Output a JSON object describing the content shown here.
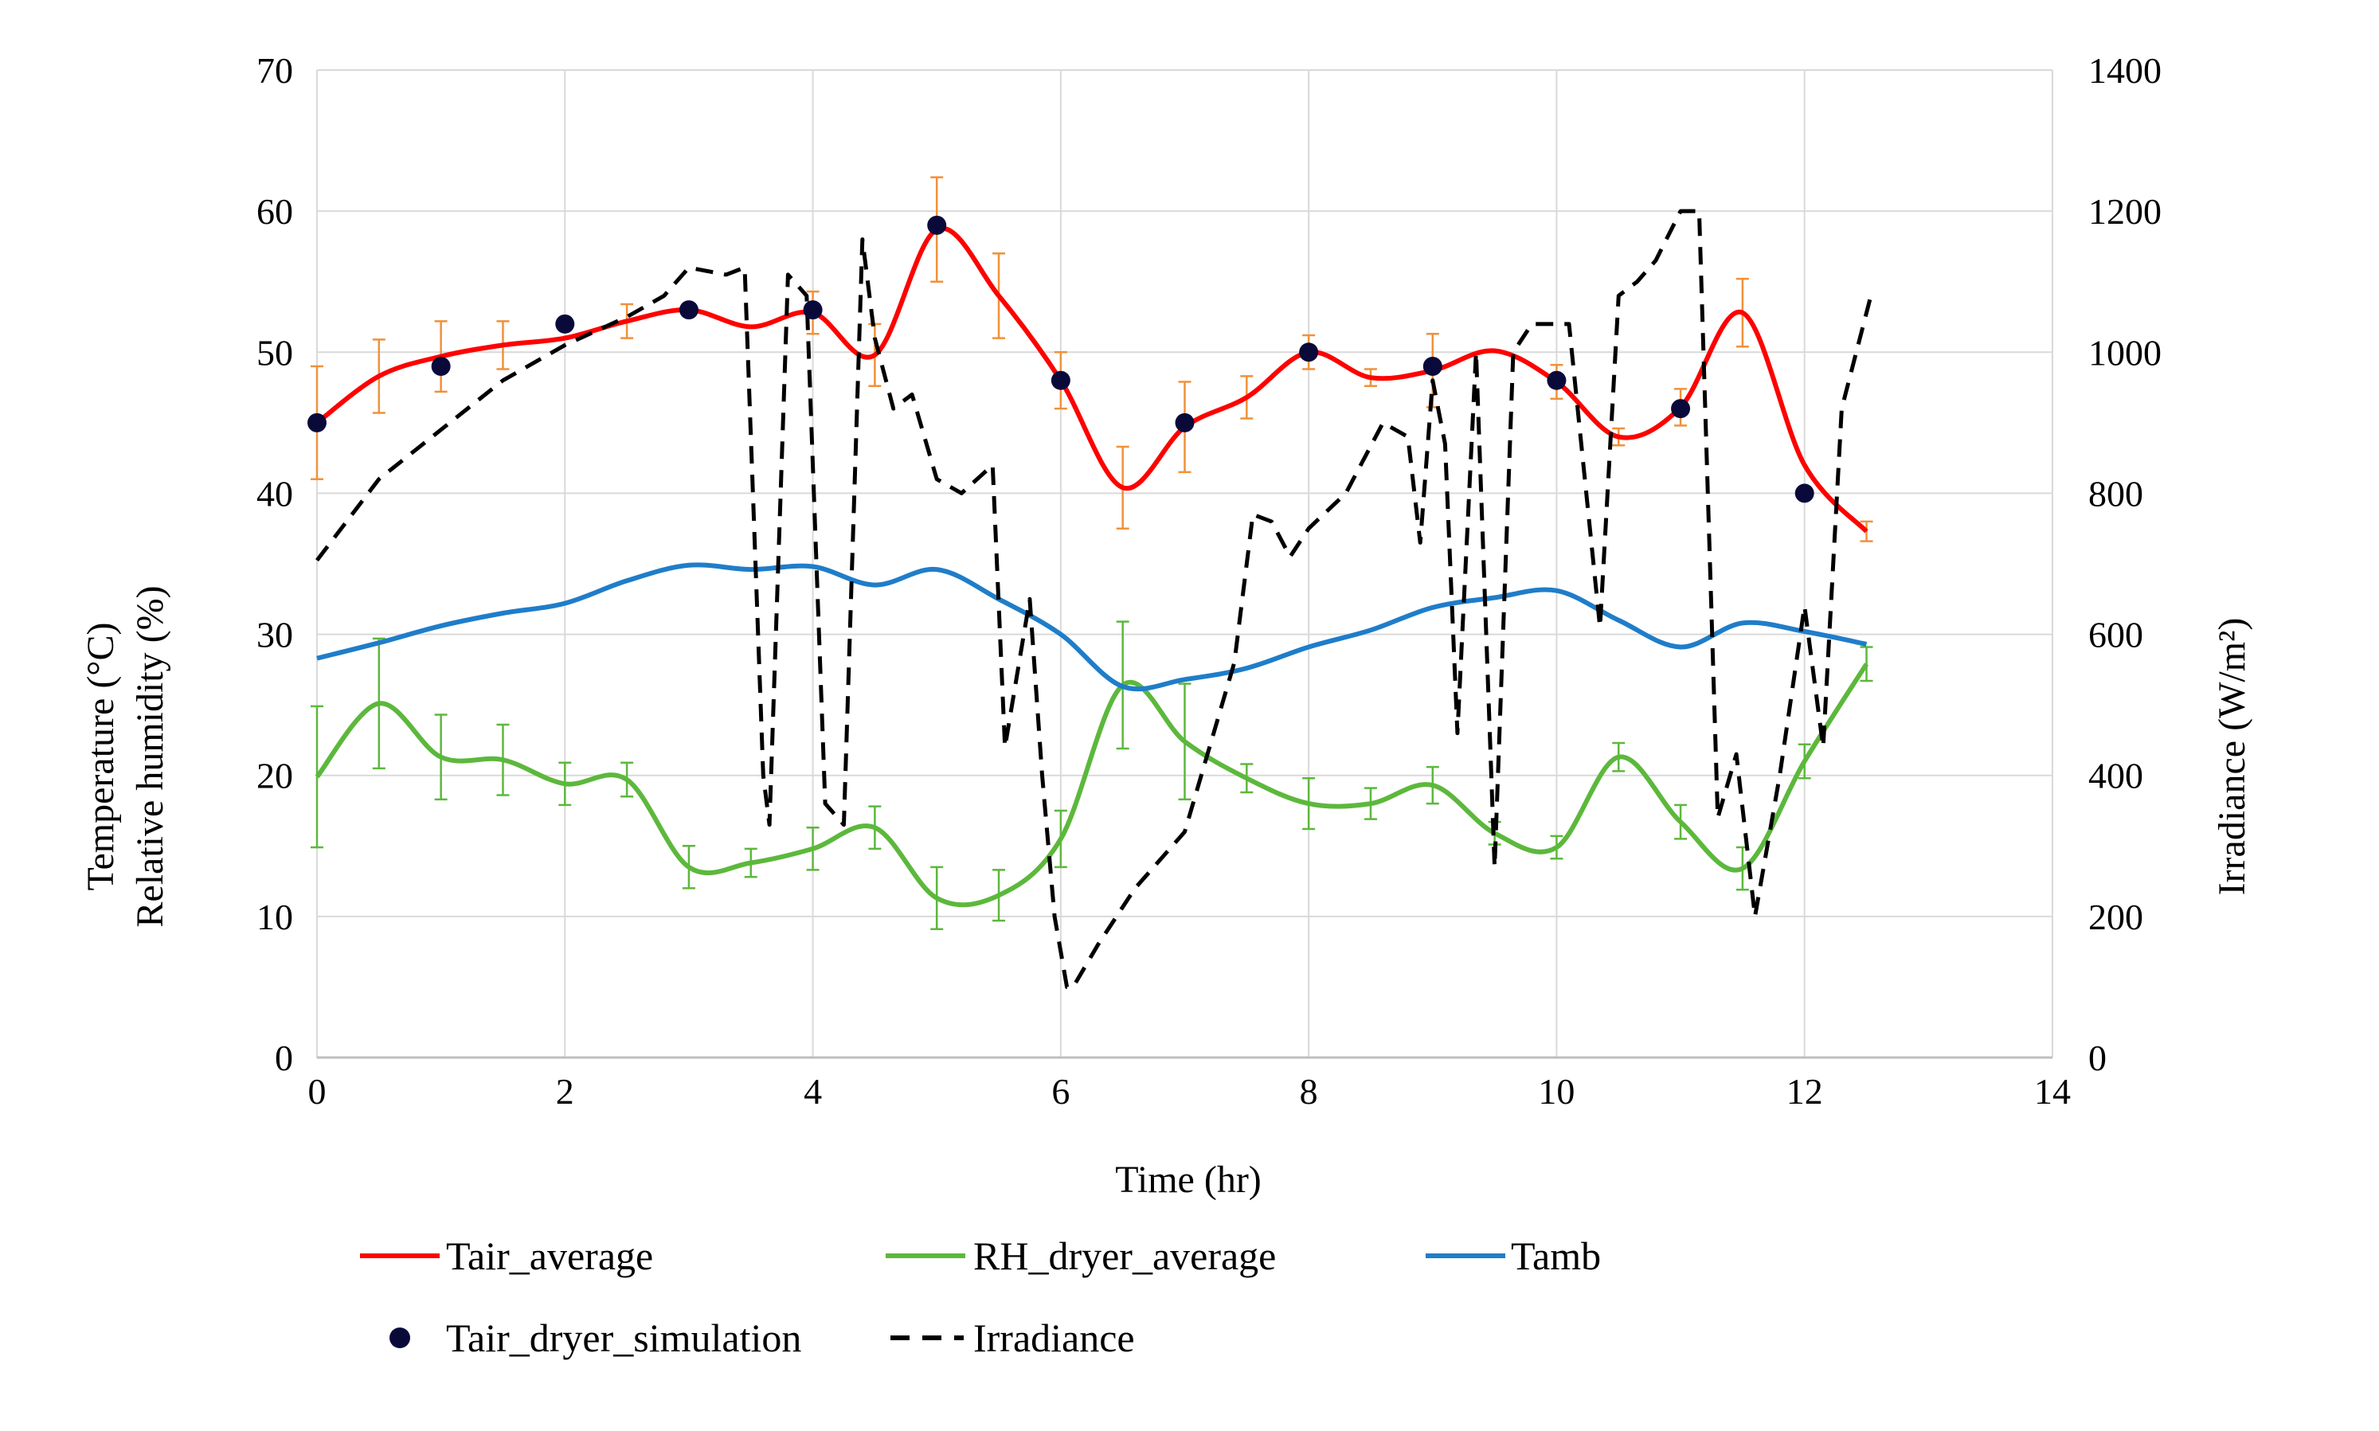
{
  "chart_data": {
    "type": "line",
    "title": "",
    "xlabel": "Time (hr)",
    "ylabel_lines": [
      "Temperature (°C)",
      "Relative humidity (%)"
    ],
    "y2label": "Irradiance (W/m²)",
    "xlim": [
      0,
      14
    ],
    "ylim": [
      0,
      70
    ],
    "y2lim": [
      0,
      1400
    ],
    "x_ticks": [
      0,
      2,
      4,
      6,
      8,
      10,
      12,
      14
    ],
    "y_ticks": [
      0,
      10,
      20,
      30,
      40,
      50,
      60,
      70
    ],
    "y2_ticks": [
      0,
      200,
      400,
      600,
      800,
      1000,
      1200,
      1400
    ],
    "grid": true,
    "legend_position": "bottom",
    "colors": {
      "tair": "#ff0000",
      "rh": "#5cb83c",
      "tamb": "#1f7dc9",
      "sim": "#0a0a3a",
      "irr": "#000000",
      "err_tair": "#f0913a",
      "err_rh": "#5cb83c",
      "grid": "#d9d9d9",
      "axis": "#bfbfbf"
    },
    "series": [
      {
        "name": "Tair_average",
        "key": "tair",
        "axis": "left",
        "style": "solid",
        "x": [
          0,
          0.5,
          1,
          1.5,
          2,
          2.5,
          3,
          3.5,
          4,
          4.5,
          5,
          5.5,
          6,
          6.5,
          7,
          7.5,
          8,
          8.5,
          9,
          9.5,
          10,
          10.5,
          11,
          11.5,
          12,
          12.5
        ],
        "values": [
          45,
          48.3,
          49.7,
          50.5,
          51,
          52.2,
          53,
          51.8,
          52.8,
          49.8,
          58.7,
          54,
          48,
          40.4,
          44.7,
          46.8,
          50,
          48.2,
          48.7,
          50.1,
          47.9,
          44,
          46.1,
          52.8,
          42,
          37.3
        ],
        "errors": [
          4,
          2.6,
          2.5,
          1.7,
          0,
          1.2,
          0,
          0,
          1.5,
          2.2,
          3.7,
          3,
          2,
          2.9,
          3.2,
          1.5,
          1.2,
          0.6,
          2.6,
          0,
          1.2,
          0.6,
          1.3,
          2.4,
          0,
          0.7
        ]
      },
      {
        "name": "RH_dryer_average",
        "key": "rh",
        "axis": "left",
        "style": "solid",
        "x": [
          0,
          0.5,
          1,
          1.5,
          2,
          2.5,
          3,
          3.5,
          4,
          4.5,
          5,
          5.5,
          6,
          6.5,
          7,
          7.5,
          8,
          8.5,
          9,
          9.5,
          10,
          10.5,
          11,
          11.5,
          12,
          12.5
        ],
        "values": [
          19.9,
          25.1,
          21.3,
          21.1,
          19.4,
          19.7,
          13.5,
          13.8,
          14.8,
          16.3,
          11.3,
          11.5,
          15.5,
          26.4,
          22.4,
          19.8,
          18,
          18,
          19.3,
          15.9,
          14.9,
          21.3,
          16.7,
          13.4,
          21,
          27.9
        ],
        "errors": [
          5,
          4.6,
          3,
          2.5,
          1.5,
          1.2,
          1.5,
          1,
          1.5,
          1.5,
          2.2,
          1.8,
          2,
          4.5,
          4.1,
          1,
          1.8,
          1.1,
          1.3,
          0.8,
          0.8,
          1,
          1.2,
          1.5,
          1.2,
          1.2
        ]
      },
      {
        "name": "Tamb",
        "key": "tamb",
        "axis": "left",
        "style": "solid",
        "x": [
          0,
          0.5,
          1,
          1.5,
          2,
          2.5,
          3,
          3.5,
          4,
          4.5,
          5,
          5.5,
          6,
          6.5,
          7,
          7.5,
          8,
          8.5,
          9,
          9.5,
          10,
          10.5,
          11,
          11.5,
          12,
          12.5
        ],
        "values": [
          28.3,
          29.4,
          30.6,
          31.5,
          32.2,
          33.8,
          34.9,
          34.6,
          34.8,
          33.5,
          34.6,
          32.5,
          30,
          26.3,
          26.8,
          27.6,
          29.1,
          30.3,
          31.9,
          32.6,
          33.1,
          31,
          29.1,
          30.8,
          30.2,
          29.3
        ]
      },
      {
        "name": "Tair_dryer_simulation",
        "key": "sim",
        "axis": "left",
        "style": "marker",
        "x": [
          0,
          1,
          2,
          3,
          4,
          5,
          6,
          7,
          8,
          9,
          10,
          11,
          12
        ],
        "values": [
          45,
          49,
          52,
          53,
          53,
          59,
          48,
          45,
          50,
          49,
          48,
          46,
          40
        ]
      },
      {
        "name": "Irradiance",
        "key": "irr",
        "axis": "right",
        "style": "dashed",
        "x": [
          0,
          0.5,
          1,
          1.5,
          2,
          2.5,
          2.8,
          3,
          3.3,
          3.45,
          3.6,
          3.65,
          3.8,
          3.95,
          4.1,
          4.25,
          4.4,
          4.5,
          4.65,
          4.8,
          5,
          5.2,
          5.45,
          5.55,
          5.75,
          5.85,
          5.95,
          6.05,
          6.1,
          6.3,
          6.6,
          7,
          7.4,
          7.55,
          7.7,
          7.85,
          8,
          8.3,
          8.6,
          8.8,
          8.9,
          9.0,
          9.1,
          9.2,
          9.35,
          9.5,
          9.65,
          9.8,
          10.1,
          10.35,
          10.5,
          10.65,
          10.8,
          11.0,
          11.15,
          11.3,
          11.45,
          11.6,
          11.8,
          12.0,
          12.15,
          12.3,
          12.55
        ],
        "values": [
          705,
          820,
          890,
          960,
          1010,
          1050,
          1080,
          1120,
          1110,
          1120,
          400,
          330,
          1110,
          1080,
          360,
          330,
          1160,
          1020,
          920,
          940,
          820,
          800,
          840,
          440,
          650,
          400,
          200,
          100,
          100,
          160,
          240,
          320,
          560,
          770,
          760,
          710,
          750,
          800,
          900,
          880,
          730,
          960,
          870,
          460,
          1000,
          270,
          1000,
          1040,
          1040,
          610,
          1080,
          1100,
          1130,
          1200,
          1200,
          340,
          430,
          200,
          400,
          640,
          440,
          920,
          1090
        ]
      }
    ]
  }
}
